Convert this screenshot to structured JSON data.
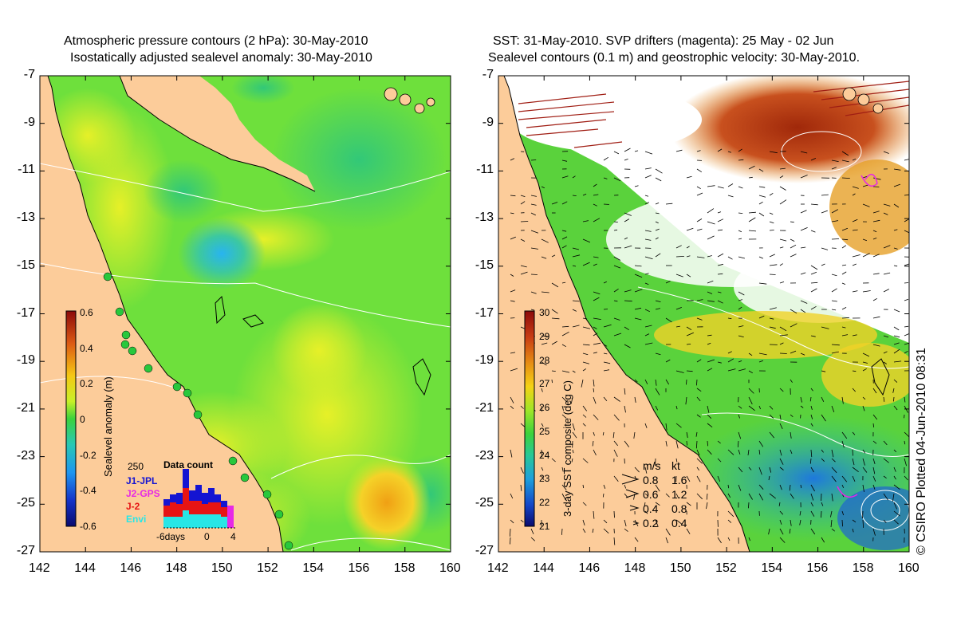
{
  "left_panel": {
    "title_line1": "Atmospheric pressure contours (2 hPa): 30-May-2010",
    "title_line2": "Isostatically adjusted sealevel anomaly: 30-May-2010",
    "colorbar_label": "Sealevel anomaly (m)",
    "colorbar_ticks": [
      "0.6",
      "0.4",
      "0.2",
      "0",
      "-0.2",
      "-0.4",
      "-0.6"
    ],
    "inset": {
      "count_max": "250",
      "title": "Data count",
      "series": [
        {
          "name": "J1-JPL",
          "color": "#1414d2"
        },
        {
          "name": "J2-GPS",
          "color": "#e628e6"
        },
        {
          "name": "J-2",
          "color": "#e61414"
        },
        {
          "name": "Envi",
          "color": "#28e6e6"
        }
      ],
      "x_ticks": [
        "-6days",
        "0",
        "4"
      ]
    }
  },
  "right_panel": {
    "title_line1": "SST: 31-May-2010. SVP drifters (magenta): 25 May - 02 Jun",
    "title_line2": "Sealevel contours (0.1 m) and geostrophic velocity: 30-May-2010.",
    "colorbar_label": "3-day SST composite (deg C)",
    "colorbar_ticks": [
      "30",
      "29",
      "28",
      "27",
      "26",
      "25",
      "24",
      "23",
      "22",
      "21"
    ],
    "velocity_legend": {
      "header_ms": "m/s",
      "header_kt": "kt",
      "rows": [
        {
          "ms": "0.8",
          "kt": "1.6"
        },
        {
          "ms": "0.6",
          "kt": "1.2"
        },
        {
          "ms": "0.4",
          "kt": "0.8"
        },
        {
          "ms": "0.2",
          "kt": "0.4"
        }
      ]
    }
  },
  "axes": {
    "y_ticks": [
      "-7",
      "-9",
      "-11",
      "-13",
      "-15",
      "-17",
      "-19",
      "-21",
      "-23",
      "-25",
      "-27"
    ],
    "x_ticks": [
      "142",
      "144",
      "146",
      "148",
      "150",
      "152",
      "154",
      "156",
      "158",
      "160"
    ]
  },
  "colors": {
    "land": "#fccc9a",
    "ocean_green": "#6ee03c",
    "ocean_yellow": "#d2f028",
    "ocean_blue": "#3cc896",
    "sst_red": "#a01e0a",
    "sst_orange": "#e68c14"
  },
  "copyright": "© CSIRO Plotted 04-Jun-2010 08:31"
}
